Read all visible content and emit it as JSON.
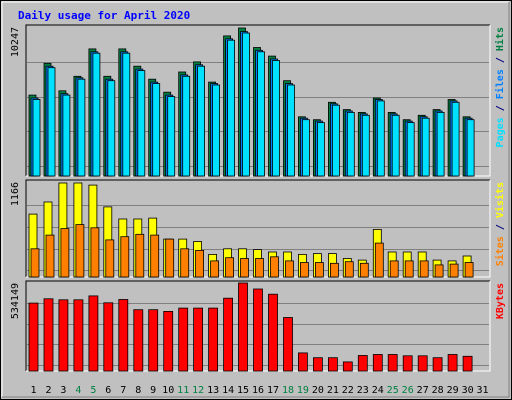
{
  "chart_data": {
    "type": "bar",
    "title": "Daily usage for April 2020",
    "categories": [
      "1",
      "2",
      "3",
      "4",
      "5",
      "6",
      "7",
      "8",
      "9",
      "10",
      "11",
      "12",
      "13",
      "14",
      "15",
      "16",
      "17",
      "18",
      "19",
      "20",
      "21",
      "22",
      "23",
      "24",
      "25",
      "26",
      "27",
      "28",
      "29",
      "30",
      "31"
    ],
    "weekend_days": [
      "4",
      "5",
      "11",
      "12",
      "18",
      "19",
      "25",
      "26"
    ],
    "panels": [
      {
        "id": "hits-files-pages",
        "ymax_label": "10247",
        "ymax": 10247,
        "series": [
          {
            "name": "Hits",
            "color": "#008040",
            "values": [
              5600,
              7800,
              5900,
              6900,
              8800,
              6900,
              8800,
              7600,
              6700,
              5800,
              7200,
              7900,
              6500,
              9700,
              10247,
              8900,
              8300,
              6600,
              4100,
              3900,
              5100,
              4600,
              4400,
              5400,
              4400,
              3900,
              4200,
              4600,
              5300,
              4100,
              0
            ]
          },
          {
            "name": "Files",
            "color": "#0080ff",
            "values": [
              5400,
              7600,
              5700,
              6800,
              8600,
              6700,
              8600,
              7400,
              6500,
              5600,
              7000,
              7700,
              6400,
              9500,
              10000,
              8700,
              8100,
              6400,
              4000,
              3800,
              5000,
              4500,
              4300,
              5300,
              4300,
              3800,
              4100,
              4500,
              5200,
              4000,
              0
            ]
          },
          {
            "name": "Pages",
            "color": "#00e0ff",
            "values": [
              5300,
              7500,
              5600,
              6700,
              8500,
              6600,
              8500,
              7300,
              6400,
              5500,
              6900,
              7600,
              6300,
              9400,
              9900,
              8600,
              8000,
              6300,
              3900,
              3700,
              4900,
              4400,
              4200,
              5200,
              4200,
              3700,
              4000,
              4400,
              5100,
              3900,
              0
            ]
          }
        ],
        "axis_labels": [
          {
            "text": "Pages",
            "color": "#00e0ff"
          },
          {
            "text": " / ",
            "color": "#000080"
          },
          {
            "text": "Files",
            "color": "#0080ff"
          },
          {
            "text": " / ",
            "color": "#000080"
          },
          {
            "text": "Hits",
            "color": "#008040"
          }
        ]
      },
      {
        "id": "visits-sites",
        "ymax_label": "1166",
        "ymax": 1166,
        "series": [
          {
            "name": "Visits",
            "color": "#ffff00",
            "values": [
              780,
              930,
              1166,
              1166,
              1140,
              870,
              720,
              720,
              730,
              470,
              470,
              440,
              280,
              350,
              350,
              340,
              310,
              310,
              280,
              290,
              290,
              230,
              210,
              590,
              310,
              310,
              310,
              210,
              200,
              260,
              0
            ]
          },
          {
            "name": "Sites",
            "color": "#ff8000",
            "values": [
              350,
              520,
              600,
              650,
              610,
              460,
              500,
              530,
              520,
              470,
              350,
              330,
              200,
              240,
              230,
              230,
              250,
              200,
              180,
              180,
              170,
              190,
              170,
              420,
              200,
              200,
              200,
              150,
              160,
              180,
              0
            ]
          }
        ],
        "axis_labels": [
          {
            "text": "Sites",
            "color": "#ff8000"
          },
          {
            "text": " / ",
            "color": "#000080"
          },
          {
            "text": "Visits",
            "color": "#ffff00"
          }
        ]
      },
      {
        "id": "kbytes",
        "ymax_label": "534149",
        "ymax": 534149,
        "series": [
          {
            "name": "KBytes",
            "color": "#ff0000",
            "values": [
              412000,
              438000,
              432000,
              432000,
              456000,
              414000,
              434000,
              372000,
              372000,
              362000,
              382000,
              382000,
              382000,
              442000,
              534149,
              498000,
              466000,
              325000,
              110000,
              81000,
              81000,
              55000,
              94000,
              100000,
              100000,
              92000,
              92000,
              81000,
              100000,
              89000,
              0
            ]
          }
        ],
        "axis_labels": [
          {
            "text": "KBytes",
            "color": "#ff0000"
          }
        ]
      }
    ],
    "colors": {
      "background": "#c0c0c0",
      "plot": "#c0c0c0",
      "title": "#0000ff",
      "weekday_label": "#000000",
      "weekend_label": "#008040",
      "outline": "#000000",
      "grid": "#808080"
    }
  }
}
